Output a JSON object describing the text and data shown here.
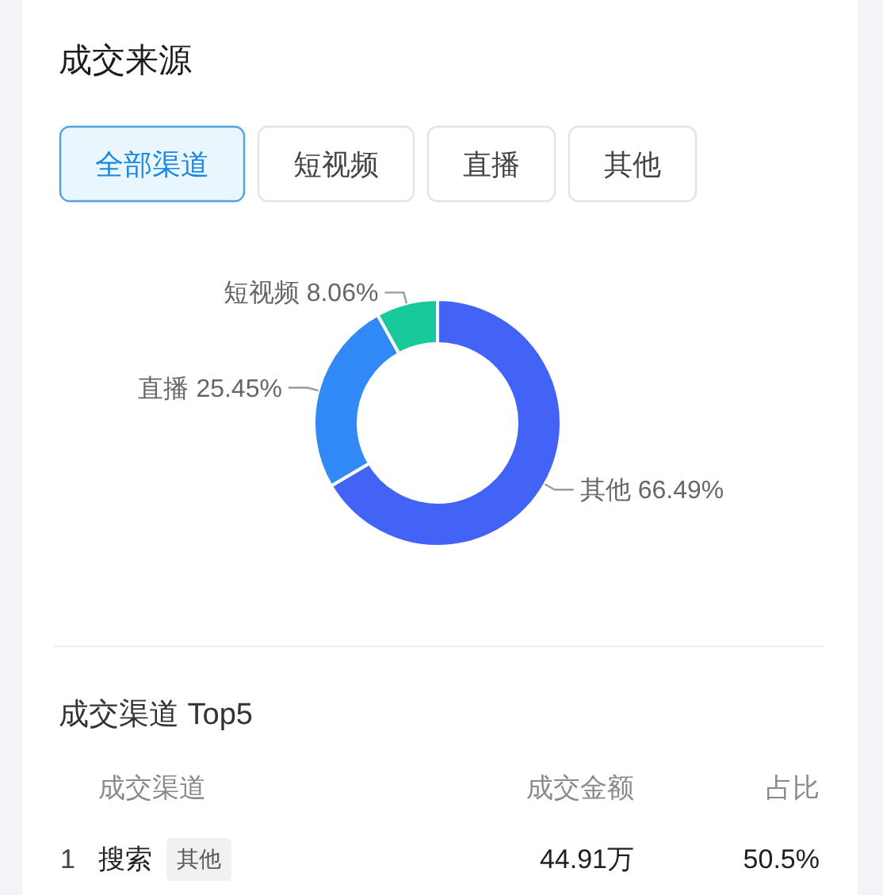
{
  "chart_data": [
    {
      "type": "donut",
      "title": "成交来源",
      "annotations": [
        "全部渠道",
        "短视频",
        "直播",
        "其他"
      ],
      "categories": [
        "其他",
        "直播",
        "短视频"
      ],
      "values": [
        66.49,
        25.45,
        8.06
      ],
      "value_labels": [
        "66.49%",
        "25.45%",
        "8.06%"
      ],
      "colors": [
        "#4363f6",
        "#3089f7",
        "#17c99b"
      ]
    },
    {
      "type": "other",
      "title": "成交渠道 Top5",
      "annotations": [
        "成交渠道",
        "成交金额",
        "占比",
        "1",
        "搜索",
        "其他",
        "44.91万",
        "50.5%"
      ]
    }
  ]
}
